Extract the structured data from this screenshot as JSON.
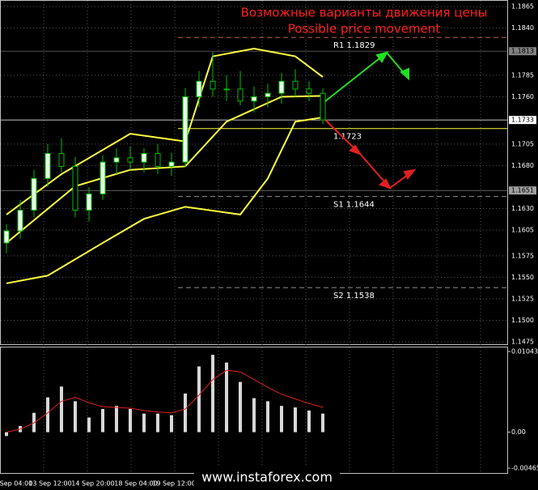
{
  "chart_data": [
    {
      "type": "candlestick",
      "title": "Возможные варианты движения цены",
      "subtitle": "Possible price movement",
      "open": [
        1.159,
        1.1604,
        1.1628,
        1.1665,
        1.1694,
        1.1679,
        1.1628,
        1.1647,
        1.1684,
        1.1689,
        1.1684,
        1.1694,
        1.1679,
        1.1684,
        1.176,
        1.1778,
        1.1769,
        1.1769,
        1.1755,
        1.176,
        1.1764,
        1.1778,
        1.1769,
        1.1764
      ],
      "high": [
        1.1612,
        1.164,
        1.1675,
        1.1705,
        1.1712,
        1.169,
        1.1655,
        1.1692,
        1.17,
        1.1702,
        1.17,
        1.1705,
        1.1695,
        1.177,
        1.179,
        1.1812,
        1.1785,
        1.179,
        1.1772,
        1.1775,
        1.1788,
        1.1792,
        1.1778,
        1.177
      ],
      "low": [
        1.1578,
        1.1595,
        1.162,
        1.1655,
        1.1672,
        1.162,
        1.1615,
        1.164,
        1.167,
        1.1675,
        1.1672,
        1.167,
        1.1668,
        1.1678,
        1.1748,
        1.176,
        1.1755,
        1.175,
        1.1742,
        1.1748,
        1.1752,
        1.176,
        1.1755,
        1.1728
      ],
      "close": [
        1.1604,
        1.1628,
        1.1665,
        1.1694,
        1.1679,
        1.1628,
        1.1647,
        1.1684,
        1.1689,
        1.1684,
        1.1694,
        1.1679,
        1.1684,
        1.176,
        1.1778,
        1.1769,
        1.1769,
        1.1755,
        1.176,
        1.1764,
        1.1778,
        1.1769,
        1.1764,
        1.1733
      ],
      "bull_color": "#00c000",
      "bear_color": "#00c000",
      "series": [
        {
          "name": "Upper band",
          "color": "#ffff40",
          "x": [
            0,
            4,
            9,
            13,
            15,
            18,
            21,
            23
          ],
          "values": [
            1.1623,
            1.167,
            1.1717,
            1.1708,
            1.1807,
            1.1816,
            1.1807,
            1.1783
          ]
        },
        {
          "name": "Middle band",
          "color": "#ffff40",
          "x": [
            0,
            5,
            9,
            13,
            16,
            20,
            23
          ],
          "values": [
            1.159,
            1.1656,
            1.1675,
            1.1679,
            1.1731,
            1.176,
            1.1761
          ]
        },
        {
          "name": "Lower band",
          "color": "#ffff40",
          "x": [
            0,
            3,
            7,
            10,
            13,
            17,
            19,
            21,
            23
          ],
          "values": [
            1.1543,
            1.1552,
            1.159,
            1.1618,
            1.1632,
            1.1623,
            1.1665,
            1.1731,
            1.1736
          ]
        }
      ],
      "levels": [
        {
          "value": 1.1829,
          "label": "R1  1.1829",
          "color": "#c06050",
          "dash": true
        },
        {
          "value": 1.1723,
          "label": "1.1723",
          "color": "#ffff40",
          "dash": false
        },
        {
          "value": 1.1644,
          "label": "S1  1.1644",
          "color": "#909090",
          "dash": true
        },
        {
          "value": 1.1538,
          "label": "S2  1.1538",
          "color": "#909090",
          "dash": true
        }
      ],
      "price_tags": [
        {
          "value": 1.1813,
          "label": "1.1813",
          "color": "#808080"
        },
        {
          "value": 1.1733,
          "label": "1.1733",
          "color": "#ffffff"
        },
        {
          "value": 1.1651,
          "label": "1.1651",
          "color": "#a0a0a0"
        }
      ],
      "ylim": [
        1.1475,
        1.1865
      ],
      "yticks": [
        1.1865,
        {
          "value": 1.184,
          "label": "1.1840"
        },
        1.1785,
        {
          "value": 1.176,
          "label": "1.1760"
        },
        1.1705,
        {
          "value": 1.168,
          "label": "1.1680"
        },
        {
          "value": 1.163,
          "label": "1.1630"
        },
        1.1605,
        1.1575,
        {
          "value": 1.155,
          "label": "1.1550"
        },
        1.1525,
        {
          "value": 1.15,
          "label": "1.1500"
        },
        1.1475
      ],
      "grid": true,
      "x_labels": [
        "Sep 04:00",
        "13 Sep 12:00",
        "14 Sep 20:00",
        "18 Sep 04:00",
        "19 Sep 12:00"
      ],
      "watermark": "www.instaforex.com"
    },
    {
      "type": "bar",
      "values": [
        -0.0005,
        0.0008,
        0.0025,
        0.0045,
        0.0059,
        0.004,
        0.0019,
        0.003,
        0.0034,
        0.003,
        0.0024,
        0.0024,
        0.0022,
        0.005,
        0.0085,
        0.01,
        0.009,
        0.0065,
        0.0044,
        0.004,
        0.0034,
        0.0032,
        0.0028,
        0.0024
      ],
      "color": "#d8d8d8",
      "series": [
        {
          "name": "Signal",
          "color": "#e02020",
          "values": [
            0.0,
            0.0004,
            0.0012,
            0.0025,
            0.004,
            0.0045,
            0.0038,
            0.0033,
            0.0032,
            0.0031,
            0.0028,
            0.0026,
            0.0025,
            0.003,
            0.0048,
            0.0068,
            0.008,
            0.0078,
            0.0068,
            0.0058,
            0.0049,
            0.0043,
            0.0037,
            0.0032
          ]
        }
      ],
      "ylim": [
        -0.00465,
        0.01043
      ],
      "yticks": [
        0.01043,
        {
          "value": 0,
          "label": "0.00"
        },
        -0.00465
      ]
    }
  ]
}
